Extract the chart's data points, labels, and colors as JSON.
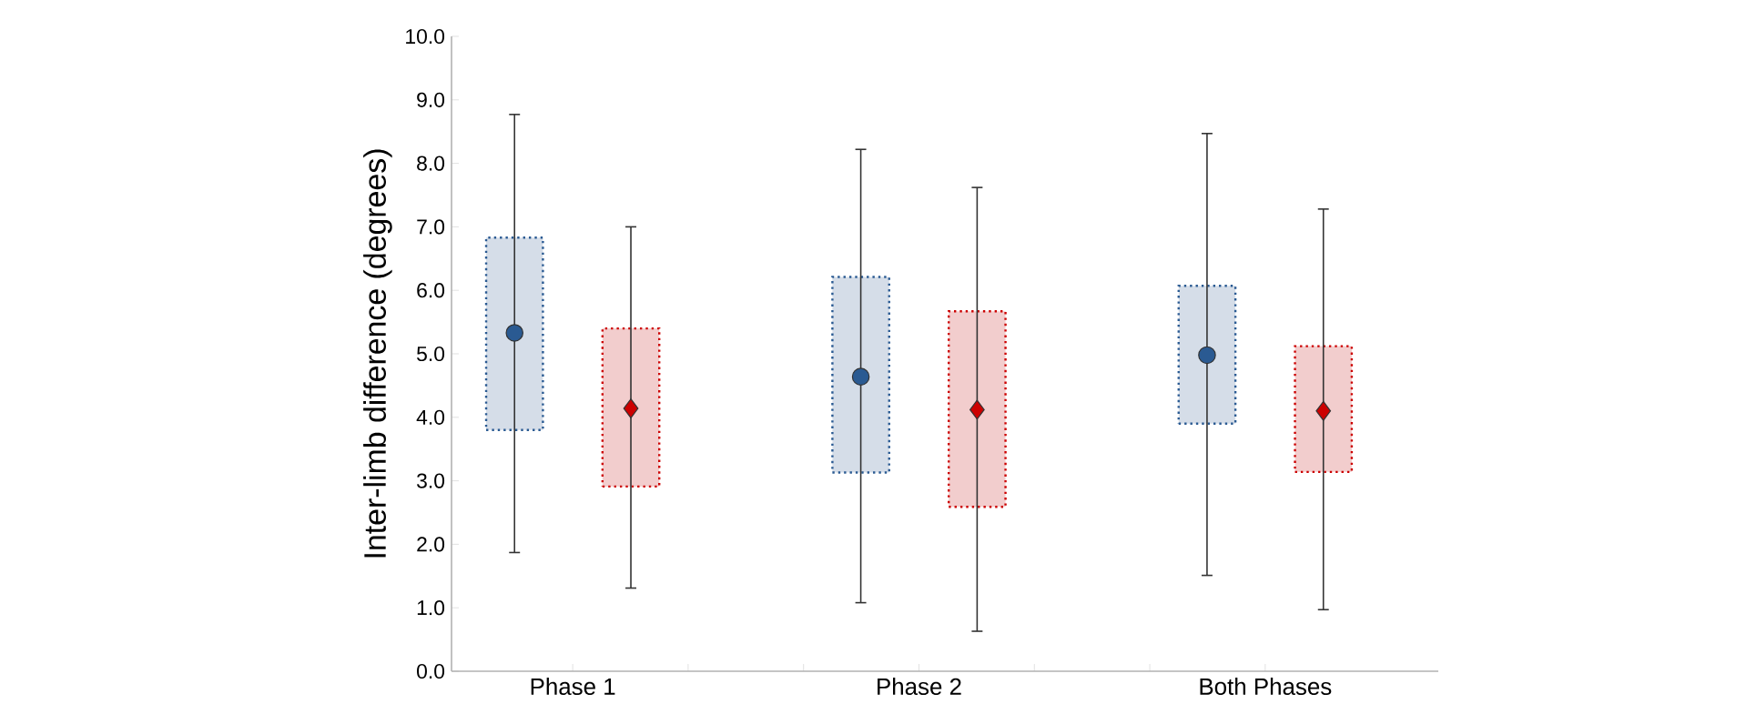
{
  "chart_data": {
    "type": "scatter",
    "ylabel": "Inter-limb difference (degrees)",
    "categories": [
      "Phase 1",
      "Phase 2",
      "Both Phases"
    ],
    "ylim": [
      0,
      10
    ],
    "yticks": [
      {
        "value": 0,
        "label": "0.0"
      },
      {
        "value": 1,
        "label": "1.0"
      },
      {
        "value": 2,
        "label": "2.0"
      },
      {
        "value": 3,
        "label": "3.0"
      },
      {
        "value": 4,
        "label": "4.0"
      },
      {
        "value": 5,
        "label": "5.0"
      },
      {
        "value": 6,
        "label": "6.0"
      },
      {
        "value": 7,
        "label": "7.0"
      },
      {
        "value": 8,
        "label": "8.0"
      },
      {
        "value": 9,
        "label": "9.0"
      },
      {
        "value": 10,
        "label": "10.0"
      }
    ],
    "grid": false,
    "series": [
      {
        "type": "bar",
        "color": "#d5dde8",
        "base": [
          3.8,
          3.13,
          3.9
        ],
        "values": [
          3.03,
          3.08,
          2.17
        ]
      },
      {
        "type": "bar",
        "color": "#f2cdcd",
        "base": [
          2.91,
          2.59,
          3.14
        ],
        "values": [
          2.49,
          3.08,
          1.98
        ]
      },
      {
        "marker": "circle",
        "color": "#2a5a92",
        "values": [
          5.33,
          4.64,
          4.98
        ],
        "errors": [
          [
            1.87,
            8.77
          ],
          [
            1.08,
            8.22
          ],
          [
            1.51,
            8.47
          ]
        ]
      },
      {
        "marker": "diamond",
        "color": "#cc0000",
        "values": [
          4.14,
          4.12,
          4.1
        ],
        "errors": [
          [
            1.31,
            7.0
          ],
          [
            0.63,
            7.62
          ],
          [
            0.97,
            7.28
          ]
        ]
      }
    ]
  }
}
